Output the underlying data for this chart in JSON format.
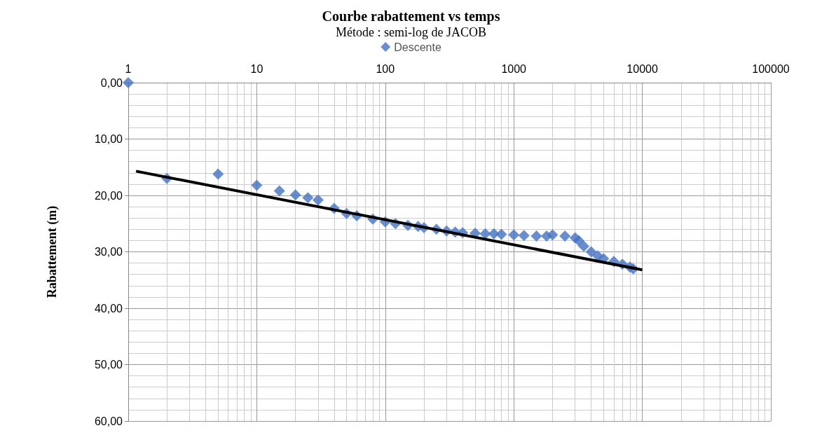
{
  "chart_data": {
    "type": "scatter",
    "title": "Courbe rabattement vs temps",
    "subtitle": "Métode : semi-log de JACOB",
    "ylabel": "Rabattement (m)",
    "log": "x",
    "xlim": [
      1,
      100000
    ],
    "xticks": [
      1,
      10,
      100,
      1000,
      10000,
      100000
    ],
    "ylim": [
      60,
      0
    ],
    "yticks": [
      {
        "value": 0,
        "label": "0,00"
      },
      {
        "value": 10,
        "label": "10,00"
      },
      {
        "value": 20,
        "label": "20,00"
      },
      {
        "value": 30,
        "label": "30,00"
      },
      {
        "value": 40,
        "label": "40,00"
      },
      {
        "value": 50,
        "label": "50,00"
      },
      {
        "value": 60,
        "label": "60,00"
      }
    ],
    "grid": true,
    "legend": "top",
    "series": [
      {
        "name": "Descente",
        "marker": "diamond",
        "color": "#4472c4",
        "x": [
          1,
          2,
          5,
          10,
          15,
          20,
          25,
          30,
          40,
          50,
          60,
          80,
          100,
          120,
          150,
          180,
          200,
          250,
          300,
          350,
          400,
          500,
          600,
          700,
          800,
          1000,
          1200,
          1500,
          1800,
          2000,
          2500,
          3000,
          3200,
          3500,
          4000,
          4500,
          5000,
          6000,
          7000,
          8000,
          8500
        ],
        "values": [
          0,
          17.0,
          16.2,
          18.2,
          19.2,
          19.9,
          20.4,
          20.8,
          22.3,
          23.2,
          23.6,
          24.2,
          24.7,
          25.0,
          25.3,
          25.5,
          25.7,
          26.0,
          26.3,
          26.5,
          26.6,
          26.7,
          26.8,
          26.8,
          26.9,
          27.0,
          27.1,
          27.2,
          27.2,
          27.0,
          27.2,
          27.5,
          28.0,
          29.0,
          30.0,
          30.7,
          31.2,
          31.7,
          32.2,
          32.7,
          33.0
        ]
      },
      {
        "type": "line",
        "color": "#000000",
        "x": [
          1.15,
          10000
        ],
        "values": [
          15.7,
          33.2
        ]
      }
    ]
  }
}
